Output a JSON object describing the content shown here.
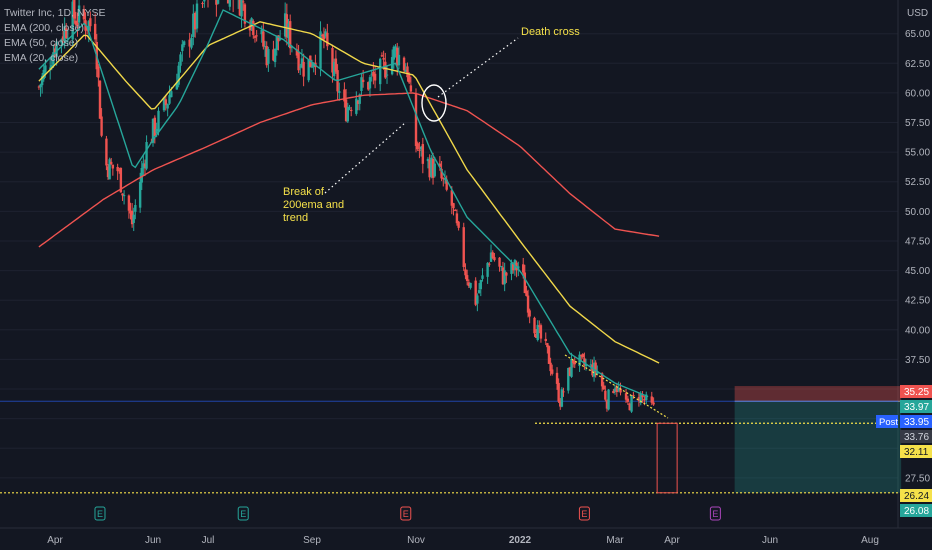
{
  "header": {
    "symbol_line": "Twitter Inc, 1D, NYSE",
    "currency": "USD"
  },
  "legend": [
    {
      "label": "EMA (200, close)",
      "color": "#ef5350"
    },
    {
      "label": "EMA (50, close)",
      "color": "#f0d84a"
    },
    {
      "label": "EMA (20, close)",
      "color": "#26a69a"
    }
  ],
  "annotations": {
    "death_cross": "Death cross",
    "break_line1": "Break of",
    "break_line2": "200ema and",
    "break_line3": "trend"
  },
  "price_labels": {
    "stop": "35.25",
    "last": "33.97",
    "post_badge": "Post",
    "post_value": "33.95",
    "mid": "33.76",
    "support": "32.11",
    "target": "26.24",
    "bottom": "26.08"
  },
  "earnings_marker": "E",
  "colors": {
    "background": "#131722",
    "up": "#26a69a",
    "down": "#ef5350",
    "ema200": "#ef5350",
    "ema50": "#f0d84a",
    "ema20": "#26a69a",
    "annotation": "#f5e14a",
    "support_line": "#f5e14a",
    "post_badge": "#2962ff"
  },
  "chart_data": {
    "type": "candlestick",
    "y_axis": {
      "ticks": [
        "27.50",
        "30.00",
        "32.50",
        "35.00",
        "37.50",
        "40.00",
        "42.50",
        "45.00",
        "47.50",
        "50.00",
        "52.50",
        "55.00",
        "57.50",
        "60.00",
        "62.50",
        "65.00"
      ],
      "range": [
        25.8,
        67.0
      ],
      "unit": "USD"
    },
    "x_axis": {
      "ticks": [
        "Apr",
        "Jun",
        "Jul",
        "Sep",
        "Nov",
        "2022",
        "Mar",
        "Apr",
        "Jun",
        "Aug"
      ]
    },
    "price_path": [
      [
        "2021-03-22",
        60.5
      ],
      [
        "2021-04-01",
        64.0
      ],
      [
        "2021-04-12",
        66.5
      ],
      [
        "2021-04-20",
        66.0
      ],
      [
        "2021-04-26",
        65.5
      ],
      [
        "2021-05-01",
        54.0
      ],
      [
        "2021-05-10",
        53.5
      ],
      [
        "2021-05-19",
        49.0
      ],
      [
        "2021-05-28",
        55.5
      ],
      [
        "2021-06-08",
        59.0
      ],
      [
        "2021-06-20",
        64.5
      ],
      [
        "2021-07-01",
        68.5
      ],
      [
        "2021-07-15",
        69.0
      ],
      [
        "2021-07-28",
        66.0
      ],
      [
        "2021-08-06",
        63.0
      ],
      [
        "2021-08-16",
        65.5
      ],
      [
        "2021-08-28",
        62.0
      ],
      [
        "2021-09-08",
        64.5
      ],
      [
        "2021-09-20",
        58.5
      ],
      [
        "2021-09-30",
        60.5
      ],
      [
        "2021-10-10",
        61.5
      ],
      [
        "2021-10-20",
        63.5
      ],
      [
        "2021-10-27",
        62.0
      ],
      [
        "2021-10-31",
        56.0
      ],
      [
        "2021-11-05",
        54.5
      ],
      [
        "2021-11-15",
        53.0
      ],
      [
        "2021-11-22",
        50.5
      ],
      [
        "2021-11-30",
        45.0
      ],
      [
        "2021-12-06",
        42.5
      ],
      [
        "2021-12-15",
        46.5
      ],
      [
        "2021-12-22",
        44.5
      ],
      [
        "2022-01-01",
        45.5
      ],
      [
        "2022-01-08",
        41.0
      ],
      [
        "2022-01-18",
        38.0
      ],
      [
        "2022-01-26",
        34.0
      ],
      [
        "2022-02-03",
        37.5
      ],
      [
        "2022-02-10",
        37.0
      ],
      [
        "2022-02-18",
        36.5
      ],
      [
        "2022-02-24",
        34.0
      ],
      [
        "2022-03-01",
        35.5
      ],
      [
        "2022-03-07",
        33.5
      ],
      [
        "2022-03-14",
        34.5
      ],
      [
        "2022-03-22",
        33.3
      ]
    ],
    "ema200_path": [
      [
        "2021-03-22",
        47.0
      ],
      [
        "2021-05-01",
        51.0
      ],
      [
        "2021-06-01",
        53.5
      ],
      [
        "2021-07-01",
        55.5
      ],
      [
        "2021-08-01",
        57.5
      ],
      [
        "2021-09-01",
        59.0
      ],
      [
        "2021-10-01",
        59.8
      ],
      [
        "2021-10-31",
        60.0
      ],
      [
        "2021-12-01",
        58.5
      ],
      [
        "2022-01-01",
        55.5
      ],
      [
        "2022-02-01",
        51.5
      ],
      [
        "2022-03-01",
        48.5
      ],
      [
        "2022-03-25",
        47.9
      ]
    ],
    "ema50_path": [
      [
        "2021-03-22",
        61.0
      ],
      [
        "2021-04-20",
        65.0
      ],
      [
        "2021-05-15",
        61.0
      ],
      [
        "2021-06-01",
        58.5
      ],
      [
        "2021-07-01",
        64.0
      ],
      [
        "2021-08-01",
        66.0
      ],
      [
        "2021-09-01",
        65.0
      ],
      [
        "2021-10-01",
        62.5
      ],
      [
        "2021-10-31",
        61.5
      ],
      [
        "2021-12-01",
        53.5
      ],
      [
        "2022-01-01",
        47.5
      ],
      [
        "2022-02-01",
        42.0
      ],
      [
        "2022-03-01",
        39.0
      ],
      [
        "2022-03-25",
        37.2
      ]
    ],
    "ema20_path": [
      [
        "2021-03-22",
        62.0
      ],
      [
        "2021-04-20",
        66.0
      ],
      [
        "2021-05-20",
        53.5
      ],
      [
        "2021-06-15",
        59.0
      ],
      [
        "2021-07-10",
        67.0
      ],
      [
        "2021-08-15",
        64.5
      ],
      [
        "2021-09-15",
        61.0
      ],
      [
        "2021-10-20",
        62.5
      ],
      [
        "2021-11-10",
        55.0
      ],
      [
        "2021-12-01",
        49.5
      ],
      [
        "2022-01-01",
        45.0
      ],
      [
        "2022-02-01",
        38.0
      ],
      [
        "2022-03-01",
        35.5
      ],
      [
        "2022-03-20",
        34.3
      ]
    ],
    "support_level": 32.11,
    "target_level": 26.24,
    "position": {
      "entry": 33.97,
      "stop": 35.25,
      "target": 26.24,
      "start": "2022-05-10",
      "end": "2022-08-20"
    },
    "measured_move": {
      "x": "2022-03-25",
      "top": 32.11,
      "bottom": 26.24
    },
    "earnings_dates": [
      "2021-04-29",
      "2021-07-22",
      "2021-10-26",
      "2022-02-10",
      "2022-04-28"
    ]
  }
}
